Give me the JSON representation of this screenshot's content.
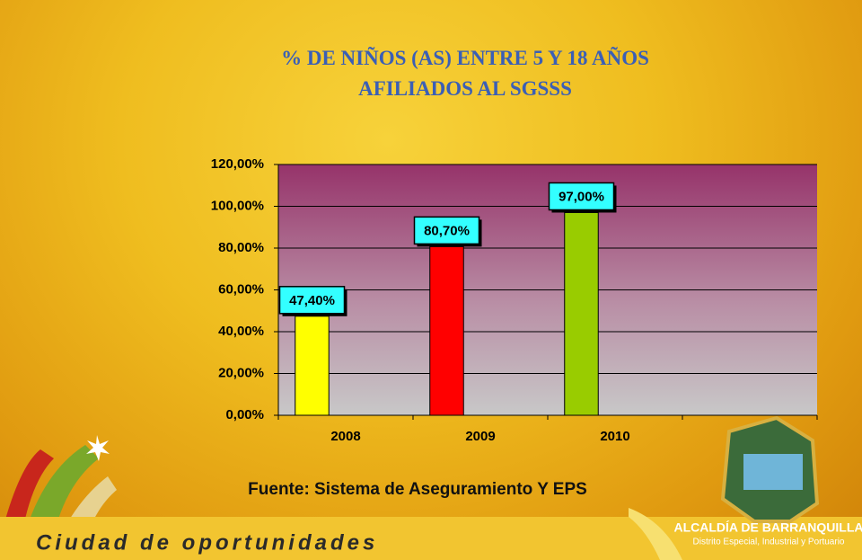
{
  "chart_data": {
    "type": "bar",
    "title": "% DE NIÑOS (AS) ENTRE 5 Y 18 AÑOS AFILIADOS AL SGSSS",
    "categories": [
      "2008",
      "2009",
      "2010",
      null
    ],
    "values": [
      47.4,
      80.7,
      97.0,
      null
    ],
    "value_labels": [
      "47,40%",
      "80,70%",
      "97,00%",
      null
    ],
    "colors": [
      "#ffff00",
      "#ff0000",
      "#99cc00",
      null
    ],
    "ylim": [
      0,
      120
    ],
    "yticks": [
      {
        "value": 0,
        "label": "0,00%"
      },
      {
        "value": 20,
        "label": "20,00%"
      },
      {
        "value": 40,
        "label": "40,00%"
      },
      {
        "value": 60,
        "label": "60,00%"
      },
      {
        "value": 80,
        "label": "80,00%"
      },
      {
        "value": 100,
        "label": "100,00%"
      },
      {
        "value": 120,
        "label": "120,00%"
      }
    ],
    "grid": true,
    "source": "Fuente: Sistema de Aseguramiento Y EPS"
  },
  "footer": {
    "slogan": "Ciudad de oportunidades",
    "org": "ALCALDÍA DE BARRANQUILLA",
    "org_sub": "Distrito Especial, Industrial y Portuario"
  }
}
